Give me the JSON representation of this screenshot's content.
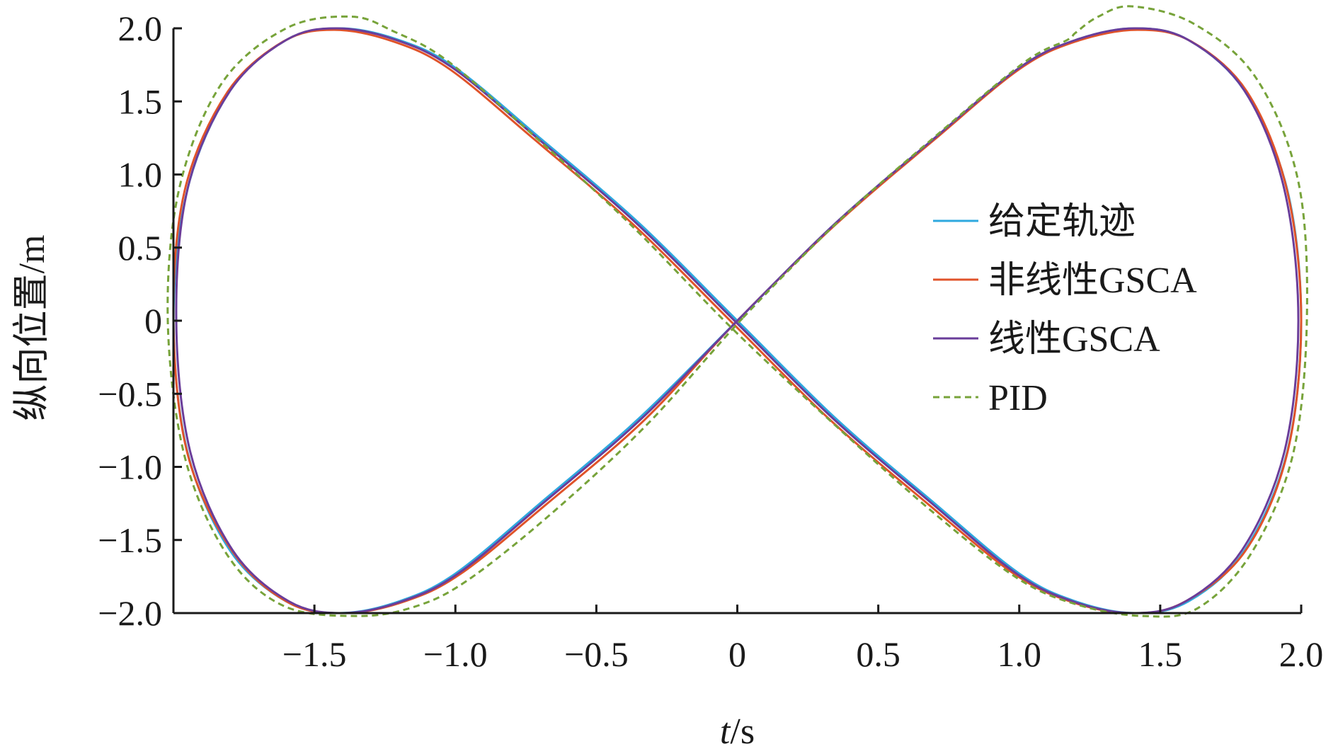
{
  "chart_data": {
    "type": "line",
    "title": "",
    "xlabel": {
      "var": "t",
      "unit": "/s"
    },
    "ylabel": "纵向位置/m",
    "xlim": [
      -2.0,
      2.0
    ],
    "ylim": [
      -2.0,
      2.0
    ],
    "xticks": [
      -1.5,
      -1.0,
      -0.5,
      0,
      0.5,
      1.0,
      1.5,
      2.0
    ],
    "xtick_labels": [
      "−1.5",
      "−1.0",
      "−0.5",
      "0",
      "0.5",
      "1.0",
      "1.5",
      "2.0"
    ],
    "yticks": [
      2.0,
      1.5,
      1.0,
      0.5,
      0,
      -0.5,
      -1.0,
      -1.5,
      -2.0
    ],
    "ytick_labels": [
      "2.0",
      "1.5",
      "1.0",
      "0.5",
      "0",
      "−0.5",
      "−1.0",
      "−1.5",
      "−2.0"
    ],
    "grid": false,
    "legend_position": "right",
    "series": [
      {
        "name": "给定轨迹",
        "color": "#2ea9df",
        "dash": "solid",
        "x": [
          0,
          0.35,
          0.7,
          1.0,
          1.2,
          1.41,
          1.6,
          1.8,
          1.95,
          2.0,
          1.95,
          1.8,
          1.6,
          1.41,
          1.2,
          1.0,
          0.7,
          0.35,
          0,
          -0.35,
          -0.7,
          -1.0,
          -1.2,
          -1.41,
          -1.6,
          -1.8,
          -1.95,
          -2.0,
          -1.95,
          -1.8,
          -1.6,
          -1.41,
          -1.2,
          -1.0,
          -0.7,
          -0.35,
          0
        ],
        "y": [
          0,
          0.67,
          1.25,
          1.73,
          1.92,
          2.0,
          1.92,
          1.57,
          0.9,
          0,
          -0.9,
          -1.57,
          -1.92,
          -2.0,
          -1.92,
          -1.73,
          -1.25,
          -0.67,
          0,
          0.67,
          1.25,
          1.73,
          1.92,
          2.0,
          1.92,
          1.57,
          0.9,
          0,
          -0.9,
          -1.57,
          -1.92,
          -2.0,
          -1.92,
          -1.73,
          -1.25,
          -0.67,
          0
        ]
      },
      {
        "name": "非线性GSCA",
        "color": "#e0532a",
        "dash": "solid",
        "x": [
          0,
          0.35,
          0.7,
          1.0,
          1.2,
          1.42,
          1.61,
          1.81,
          1.95,
          2.0,
          1.95,
          1.8,
          1.58,
          1.39,
          1.18,
          0.98,
          0.68,
          0.33,
          -0.02,
          -0.37,
          -0.72,
          -1.02,
          -1.22,
          -1.43,
          -1.61,
          -1.81,
          -1.96,
          -2.0,
          -1.95,
          -1.79,
          -1.59,
          -1.39,
          -1.18,
          -0.98,
          -0.68,
          -0.33,
          0
        ],
        "y": [
          0,
          0.66,
          1.24,
          1.72,
          1.91,
          1.99,
          1.91,
          1.56,
          0.89,
          0,
          -0.91,
          -1.58,
          -1.93,
          -2.0,
          -1.92,
          -1.73,
          -1.26,
          -0.68,
          -0.01,
          0.66,
          1.24,
          1.72,
          1.91,
          1.99,
          1.91,
          1.56,
          0.89,
          0,
          -0.91,
          -1.58,
          -1.93,
          -2.0,
          -1.92,
          -1.73,
          -1.26,
          -0.68,
          0
        ]
      },
      {
        "name": "线性GSCA",
        "color": "#6a3d9a",
        "dash": "solid",
        "x": [
          0,
          0.35,
          0.7,
          1.0,
          1.2,
          1.41,
          1.6,
          1.8,
          1.94,
          1.99,
          1.94,
          1.79,
          1.59,
          1.4,
          1.19,
          0.99,
          0.69,
          0.34,
          -0.01,
          -0.36,
          -0.71,
          -1.01,
          -1.21,
          -1.42,
          -1.6,
          -1.8,
          -1.95,
          -1.99,
          -1.94,
          -1.79,
          -1.59,
          -1.4,
          -1.19,
          -0.99,
          -0.69,
          -0.34,
          0
        ],
        "y": [
          0,
          0.67,
          1.25,
          1.73,
          1.92,
          2.0,
          1.92,
          1.57,
          0.9,
          0,
          -0.9,
          -1.57,
          -1.92,
          -2.0,
          -1.92,
          -1.73,
          -1.25,
          -0.67,
          0,
          0.67,
          1.25,
          1.73,
          1.92,
          2.0,
          1.92,
          1.57,
          0.9,
          0,
          -0.9,
          -1.57,
          -1.92,
          -2.0,
          -1.92,
          -1.73,
          -1.25,
          -0.67,
          0
        ]
      },
      {
        "name": "PID",
        "color": "#77a33a",
        "dash": "dashed",
        "x": [
          0.02,
          0.37,
          0.72,
          1.02,
          1.17,
          1.2,
          1.28,
          1.4,
          1.62,
          1.84,
          1.99,
          2.02,
          1.97,
          1.82,
          1.63,
          1.44,
          1.22,
          1.0,
          0.7,
          0.35,
          -0.02,
          -0.38,
          -0.73,
          -1.03,
          -1.22,
          -1.37,
          -1.6,
          -1.83,
          -1.98,
          -2.02,
          -1.96,
          -1.81,
          -1.61,
          -1.35,
          -1.15,
          -0.96,
          -0.66,
          -0.32,
          0.02
        ],
        "y": [
          0.02,
          0.7,
          1.29,
          1.77,
          1.92,
          1.97,
          2.08,
          2.15,
          2.03,
          1.66,
          0.95,
          0,
          -0.92,
          -1.6,
          -1.97,
          -2.02,
          -1.95,
          -1.77,
          -1.32,
          -0.72,
          -0.05,
          0.66,
          1.28,
          1.78,
          1.98,
          2.08,
          2.0,
          1.62,
          0.9,
          0,
          -0.93,
          -1.6,
          -1.95,
          -2.02,
          -1.96,
          -1.78,
          -1.32,
          -0.71,
          0.02
        ]
      }
    ]
  }
}
